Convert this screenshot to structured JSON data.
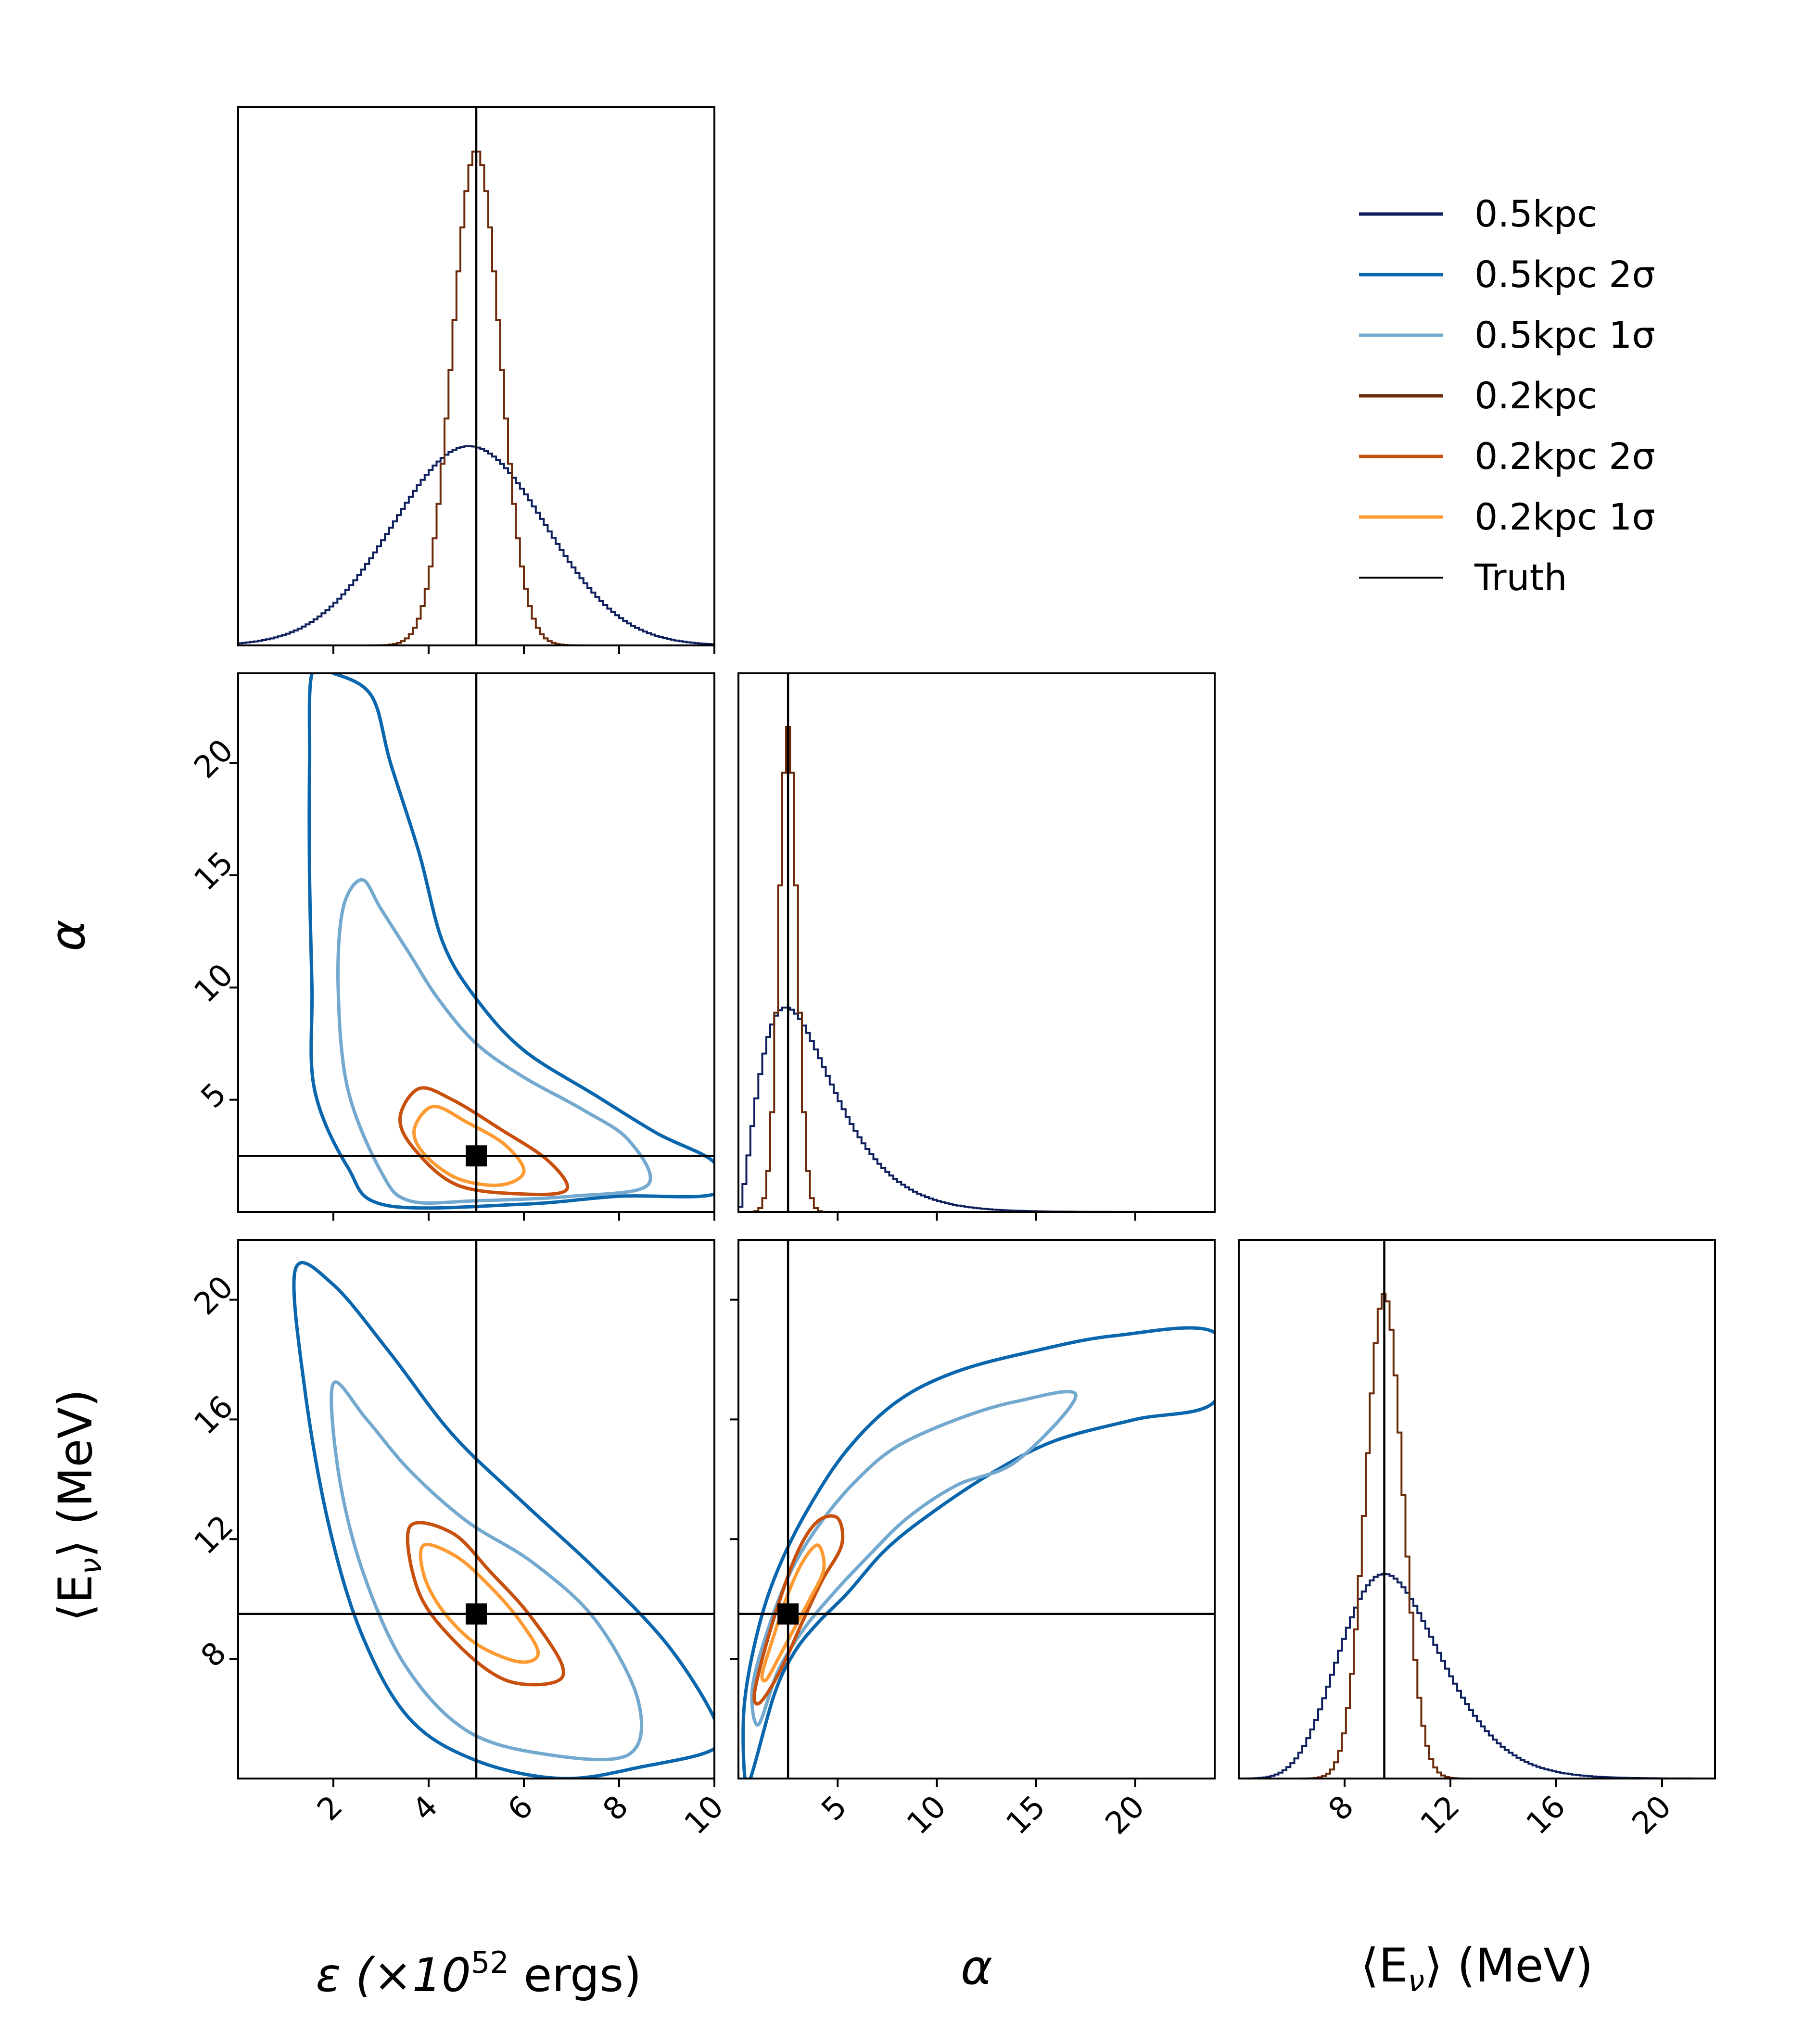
{
  "colors": {
    "0.5kpc": "#0d1f5c",
    "0.5kpc 2σ": "#0a66ad",
    "0.5kpc 1σ": "#74a9cf",
    "0.2kpc": "#6b2a0a",
    "0.2kpc 2σ": "#c8500c",
    "0.2kpc 1σ": "#fd9a31",
    "Truth": "#000000"
  },
  "legend": [
    {
      "name": "0.5kpc",
      "label": "0.5kpc"
    },
    {
      "name": "0.5kpc 2σ",
      "label": "0.5kpc 2σ"
    },
    {
      "name": "0.5kpc 1σ",
      "label": "0.5kpc 1σ"
    },
    {
      "name": "0.2kpc",
      "label": "0.2kpc"
    },
    {
      "name": "0.2kpc 2σ",
      "label": "0.2kpc 2σ"
    },
    {
      "name": "0.2kpc 1σ",
      "label": "0.2kpc 1σ"
    },
    {
      "name": "Truth",
      "label": "Truth"
    }
  ],
  "labels": {
    "epsilon_main": "ε (×10",
    "epsilon_sup": "52",
    "epsilon_tail": " ergs)",
    "alpha": "α",
    "energy": "⟨E",
    "energy_sub": "ν",
    "energy_tail": "⟩ (MeV)"
  },
  "chart_data": {
    "type": "corner",
    "parameters": [
      "epsilon",
      "alpha",
      "energy"
    ],
    "ranges": {
      "epsilon": [
        0,
        10
      ],
      "alpha": [
        0,
        24
      ],
      "energy": [
        4,
        22
      ]
    },
    "ticks": {
      "epsilon": [
        2,
        4,
        6,
        8,
        10
      ],
      "alpha": [
        5,
        10,
        15,
        20
      ],
      "energy": [
        8,
        12,
        16,
        20
      ]
    },
    "truth": {
      "epsilon": 5.0,
      "alpha": 2.5,
      "energy": 9.5
    },
    "series": [
      {
        "name": "0.5kpc",
        "posteriors": {
          "epsilon": {
            "shape": "normal",
            "mean": 4.85,
            "sd": 1.6
          },
          "alpha": {
            "shape": "gamma",
            "mode": 2.4,
            "scale": 1.45
          },
          "energy": {
            "shape": "lognormal",
            "mode": 9.5,
            "sigma": 0.2
          }
        }
      },
      {
        "name": "0.2kpc",
        "posteriors": {
          "epsilon": {
            "shape": "normal",
            "mean": 5.0,
            "sd": 0.5
          },
          "alpha": {
            "shape": "normal",
            "mean": 2.5,
            "sd": 0.45
          },
          "energy": {
            "shape": "normal",
            "mean": 9.5,
            "sd": 0.7
          }
        }
      }
    ],
    "contours": {
      "epsilon_alpha": {
        "0.5kpc 2σ": [
          [
            3.1,
            0.3
          ],
          [
            2.3,
            2.0
          ],
          [
            1.6,
            5.5
          ],
          [
            1.55,
            10
          ],
          [
            1.5,
            15
          ],
          [
            1.5,
            20
          ],
          [
            1.55,
            24
          ],
          [
            2.0,
            24
          ],
          [
            2.8,
            23
          ],
          [
            3.2,
            20
          ],
          [
            3.8,
            16
          ],
          [
            4.3,
            12
          ],
          [
            5.0,
            9.5
          ],
          [
            6.0,
            7.2
          ],
          [
            7.5,
            5.2
          ],
          [
            8.8,
            3.5
          ],
          [
            10,
            2.2
          ],
          [
            10,
            0.8
          ],
          [
            8.0,
            0.7
          ],
          [
            6.0,
            0.35
          ]
        ],
        "0.5kpc 1σ": [
          [
            3.6,
            0.5
          ],
          [
            3.0,
            1.8
          ],
          [
            2.3,
            5.5
          ],
          [
            2.1,
            10
          ],
          [
            2.2,
            13.5
          ],
          [
            2.6,
            14.8
          ],
          [
            3.0,
            13.5
          ],
          [
            3.6,
            11.5
          ],
          [
            4.2,
            9.5
          ],
          [
            5.0,
            7.5
          ],
          [
            6.0,
            6.0
          ],
          [
            7.2,
            4.6
          ],
          [
            8.2,
            3.2
          ],
          [
            8.6,
            1.2
          ],
          [
            7.0,
            0.7
          ],
          [
            5.0,
            0.5
          ]
        ],
        "0.2kpc 2σ": [
          [
            3.4,
            4.2
          ],
          [
            3.8,
            5.5
          ],
          [
            4.5,
            5.0
          ],
          [
            5.5,
            3.7
          ],
          [
            6.5,
            2.3
          ],
          [
            6.9,
            1.0
          ],
          [
            6.0,
            0.8
          ],
          [
            4.6,
            1.2
          ],
          [
            3.7,
            2.8
          ]
        ],
        "0.2kpc 1σ": [
          [
            3.7,
            3.7
          ],
          [
            4.1,
            4.7
          ],
          [
            4.8,
            4.0
          ],
          [
            5.6,
            3.0
          ],
          [
            6.0,
            1.8
          ],
          [
            5.5,
            1.2
          ],
          [
            4.6,
            1.5
          ],
          [
            3.9,
            2.6
          ]
        ]
      },
      "epsilon_energy": {
        "0.5kpc 2σ": [
          [
            1.2,
            21
          ],
          [
            2.0,
            20.5
          ],
          [
            3.2,
            18.2
          ],
          [
            4.5,
            15.5
          ],
          [
            6.0,
            13.2
          ],
          [
            7.5,
            11.0
          ],
          [
            9.0,
            8.5
          ],
          [
            10,
            6.0
          ],
          [
            10,
            5.0
          ],
          [
            8.5,
            4.4
          ],
          [
            6.8,
            4.0
          ],
          [
            5.0,
            4.6
          ],
          [
            3.6,
            6.0
          ],
          [
            2.6,
            8.8
          ],
          [
            1.9,
            12.5
          ],
          [
            1.4,
            17.0
          ]
        ],
        "0.5kpc 1σ": [
          [
            2.0,
            17.2
          ],
          [
            2.7,
            16.0
          ],
          [
            3.6,
            14.3
          ],
          [
            4.8,
            12.6
          ],
          [
            6.2,
            11.2
          ],
          [
            7.5,
            9.3
          ],
          [
            8.4,
            6.6
          ],
          [
            8.2,
            4.8
          ],
          [
            6.5,
            4.8
          ],
          [
            4.8,
            5.6
          ],
          [
            3.5,
            7.8
          ],
          [
            2.6,
            11.0
          ],
          [
            2.1,
            14.3
          ]
        ],
        "0.2kpc 2σ": [
          [
            3.6,
            12.4
          ],
          [
            4.5,
            12.2
          ],
          [
            5.3,
            10.9
          ],
          [
            6.1,
            9.5
          ],
          [
            6.8,
            7.8
          ],
          [
            6.6,
            7.2
          ],
          [
            5.6,
            7.3
          ],
          [
            4.6,
            8.5
          ],
          [
            3.8,
            10.2
          ]
        ],
        "0.2kpc 1σ": [
          [
            3.9,
            11.8
          ],
          [
            4.6,
            11.4
          ],
          [
            5.3,
            10.4
          ],
          [
            5.9,
            9.3
          ],
          [
            6.3,
            8.2
          ],
          [
            5.9,
            7.9
          ],
          [
            5.0,
            8.5
          ],
          [
            4.3,
            9.6
          ],
          [
            3.9,
            10.8
          ]
        ]
      },
      "alpha_energy": {
        "0.5kpc 2σ": [
          [
            0.3,
            6.5
          ],
          [
            1.0,
            9.0
          ],
          [
            2.0,
            11.0
          ],
          [
            3.5,
            13.0
          ],
          [
            5.5,
            15.0
          ],
          [
            8.0,
            16.6
          ],
          [
            11,
            17.6
          ],
          [
            15,
            18.3
          ],
          [
            19,
            18.8
          ],
          [
            24,
            18.9
          ],
          [
            24,
            16.6
          ],
          [
            20,
            16.0
          ],
          [
            16,
            15.3
          ],
          [
            13,
            14.3
          ],
          [
            10,
            13.0
          ],
          [
            7.5,
            11.7
          ],
          [
            5.5,
            10.2
          ],
          [
            4.0,
            9.2
          ],
          [
            2.8,
            8.2
          ],
          [
            1.8,
            6.8
          ],
          [
            0.6,
            4.0
          ],
          [
            0.3,
            4.2
          ]
        ],
        "0.5kpc 1σ": [
          [
            0.7,
            7.0
          ],
          [
            1.5,
            9.0
          ],
          [
            2.7,
            11.0
          ],
          [
            4.2,
            12.6
          ],
          [
            6.0,
            14.0
          ],
          [
            8.0,
            15.1
          ],
          [
            11,
            16.0
          ],
          [
            14,
            16.6
          ],
          [
            17,
            16.8
          ],
          [
            14,
            14.6
          ],
          [
            11,
            13.8
          ],
          [
            8.5,
            12.7
          ],
          [
            6.5,
            11.4
          ],
          [
            4.8,
            10.2
          ],
          [
            3.3,
            9.0
          ],
          [
            2.0,
            7.6
          ],
          [
            1.0,
            5.8
          ]
        ],
        "0.2kpc 2σ": [
          [
            0.8,
            6.8
          ],
          [
            1.2,
            8.0
          ],
          [
            2.0,
            9.8
          ],
          [
            3.0,
            11.6
          ],
          [
            4.0,
            12.6
          ],
          [
            5.0,
            12.7
          ],
          [
            5.2,
            11.8
          ],
          [
            4.2,
            10.6
          ],
          [
            3.2,
            9.2
          ],
          [
            2.4,
            8.0
          ],
          [
            1.6,
            7.0
          ],
          [
            1.0,
            6.5
          ]
        ],
        "0.2kpc 1σ": [
          [
            1.2,
            7.5
          ],
          [
            1.7,
            8.6
          ],
          [
            2.4,
            10.0
          ],
          [
            3.2,
            11.2
          ],
          [
            4.0,
            11.8
          ],
          [
            4.3,
            11.0
          ],
          [
            3.6,
            10.0
          ],
          [
            2.8,
            9.0
          ],
          [
            2.0,
            8.0
          ],
          [
            1.4,
            7.3
          ]
        ]
      }
    }
  }
}
